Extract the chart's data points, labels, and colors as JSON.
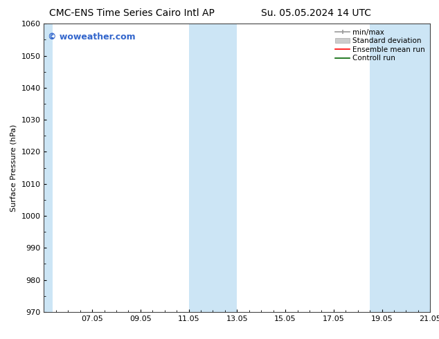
{
  "title_left": "CMC-ENS Time Series Cairo Intl AP",
  "title_right": "Su. 05.05.2024 14 UTC",
  "ylabel": "Surface Pressure (hPa)",
  "ylim": [
    970,
    1060
  ],
  "yticks": [
    970,
    980,
    990,
    1000,
    1010,
    1020,
    1030,
    1040,
    1050,
    1060
  ],
  "xlim_start": 0.0,
  "xlim_end": 16.0,
  "xtick_labels": [
    "07.05",
    "09.05",
    "11.05",
    "13.05",
    "15.05",
    "17.05",
    "19.05",
    "21.05"
  ],
  "xtick_positions": [
    2,
    4,
    6,
    8,
    10,
    12,
    14,
    16
  ],
  "shaded_bands": [
    {
      "x_start": 0.0,
      "x_end": 0.35,
      "color": "#cce5f5"
    },
    {
      "x_start": 6.0,
      "x_end": 8.0,
      "color": "#cce5f5"
    },
    {
      "x_start": 13.5,
      "x_end": 16.0,
      "color": "#cce5f5"
    }
  ],
  "watermark_text": "© woweather.com",
  "watermark_color": "#3366cc",
  "bg_color": "#ffffff",
  "plot_bg_color": "#ffffff",
  "legend_items": [
    {
      "label": "min/max",
      "color": "#999999",
      "lw": 1.2
    },
    {
      "label": "Standard deviation",
      "color": "#cccccc",
      "lw": 6
    },
    {
      "label": "Ensemble mean run",
      "color": "red",
      "lw": 1.2
    },
    {
      "label": "Controll run",
      "color": "darkgreen",
      "lw": 1.2
    }
  ],
  "title_fontsize": 10,
  "axis_label_fontsize": 8,
  "tick_fontsize": 8,
  "legend_fontsize": 7.5,
  "watermark_fontsize": 9
}
